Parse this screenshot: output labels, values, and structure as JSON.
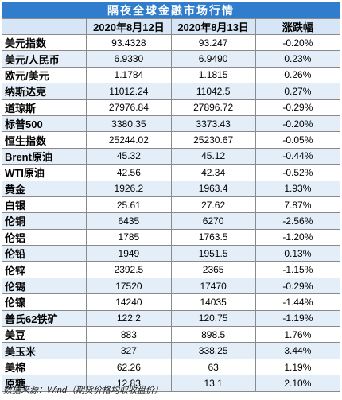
{
  "table": {
    "title": "隔夜全球金融市场行情",
    "headers": [
      "",
      "2020年8月12日",
      "2020年8月13日",
      "涨跌幅"
    ],
    "rows": [
      {
        "name": "美元指数",
        "v1": "93.4328",
        "v2": "93.247",
        "chg": "-0.20%"
      },
      {
        "name": "美元/人民币",
        "v1": "6.9330",
        "v2": "6.9490",
        "chg": "0.23%"
      },
      {
        "name": "欧元/美元",
        "v1": "1.1784",
        "v2": "1.1815",
        "chg": "0.26%"
      },
      {
        "name": "纳斯达克",
        "v1": "11012.24",
        "v2": "11042.5",
        "chg": "0.27%"
      },
      {
        "name": "道琼斯",
        "v1": "27976.84",
        "v2": "27896.72",
        "chg": "-0.29%"
      },
      {
        "name": "标普500",
        "v1": "3380.35",
        "v2": "3373.43",
        "chg": "-0.20%"
      },
      {
        "name": "恒生指数",
        "v1": "25244.02",
        "v2": "25230.67",
        "chg": "-0.05%"
      },
      {
        "name": "Brent原油",
        "v1": "45.32",
        "v2": "45.12",
        "chg": "-0.44%"
      },
      {
        "name": "WTI原油",
        "v1": "42.56",
        "v2": "42.34",
        "chg": "-0.52%"
      },
      {
        "name": "黄金",
        "v1": "1926.2",
        "v2": "1963.4",
        "chg": "1.93%"
      },
      {
        "name": "白银",
        "v1": "25.61",
        "v2": "27.62",
        "chg": "7.87%"
      },
      {
        "name": "伦铜",
        "v1": "6435",
        "v2": "6270",
        "chg": "-2.56%"
      },
      {
        "name": "伦铝",
        "v1": "1785",
        "v2": "1763.5",
        "chg": "-1.20%"
      },
      {
        "name": "伦铅",
        "v1": "1949",
        "v2": "1951.5",
        "chg": "0.13%"
      },
      {
        "name": "伦锌",
        "v1": "2392.5",
        "v2": "2365",
        "chg": "-1.15%"
      },
      {
        "name": "伦锡",
        "v1": "17520",
        "v2": "17470",
        "chg": "-0.29%"
      },
      {
        "name": "伦镍",
        "v1": "14240",
        "v2": "14035",
        "chg": "-1.44%"
      },
      {
        "name": "普氏62铁矿",
        "v1": "122.2",
        "v2": "120.75",
        "chg": "-1.19%"
      },
      {
        "name": "美豆",
        "v1": "883",
        "v2": "898.5",
        "chg": "1.76%"
      },
      {
        "name": "美玉米",
        "v1": "327",
        "v2": "338.25",
        "chg": "3.44%"
      },
      {
        "name": "美棉",
        "v1": "62.26",
        "v2": "63",
        "chg": "1.19%"
      },
      {
        "name": "原糖",
        "v1": "12.83",
        "v2": "13.1",
        "chg": "2.10%"
      }
    ]
  },
  "source": "数据来源：Wind（期货价格均取收盘价）",
  "colors": {
    "title_bg": "#2f7dcc",
    "header_bg": "#d6e6f7",
    "stripe_bg": "#e4eef8"
  }
}
